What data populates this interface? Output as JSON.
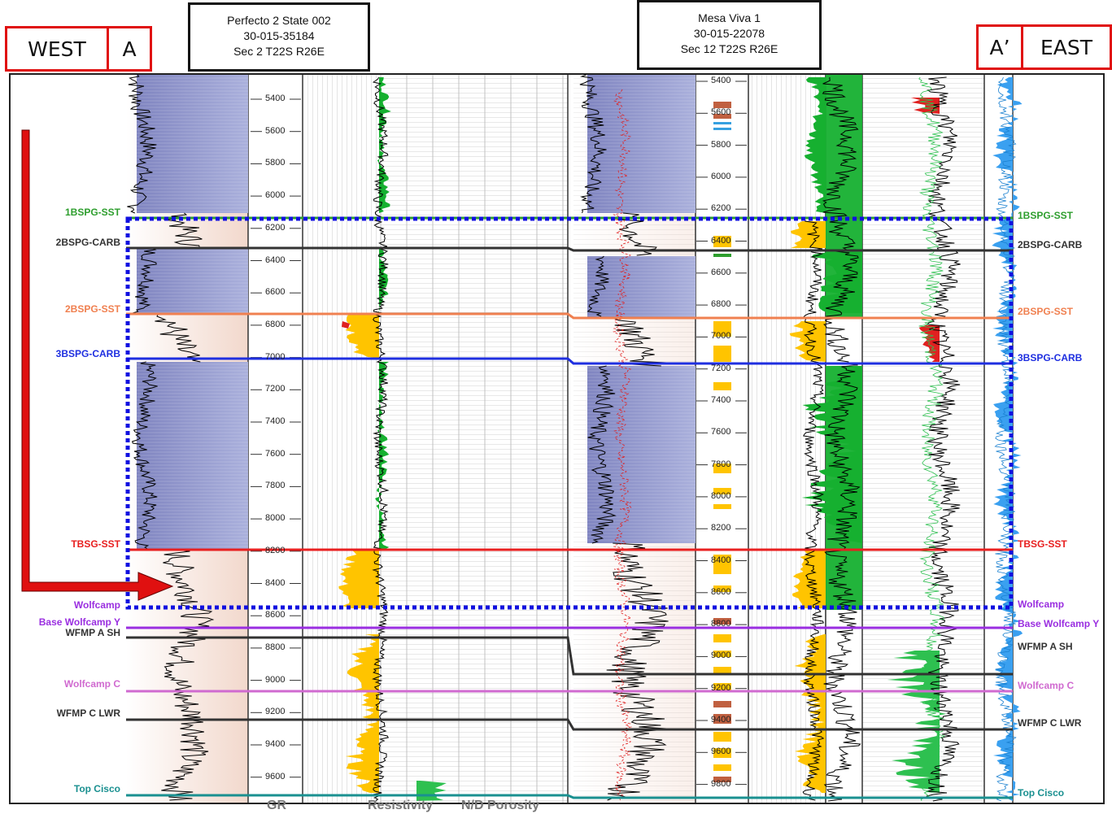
{
  "section": {
    "west_label": "WEST",
    "west_marker": "A",
    "east_marker": "A’",
    "east_label": "EAST"
  },
  "wells": [
    {
      "name": "Perfecto 2 State 002",
      "api": "30-015-35184",
      "location": "Sec 2 T22S R26E"
    },
    {
      "name": "Mesa Viva 1",
      "api": "30-015-22078",
      "location": "Sec 12 T22S R26E"
    }
  ],
  "well1_depths": [
    "5400",
    "5600",
    "5800",
    "6000",
    "6200",
    "6400",
    "6600",
    "6800",
    "7000",
    "7200",
    "7400",
    "7600",
    "7800",
    "8000",
    "8200",
    "8400",
    "8600",
    "8800",
    "9000",
    "9200",
    "9400",
    "9600"
  ],
  "well2_depths": [
    "5400",
    "5600",
    "5800",
    "6000",
    "6200",
    "6400",
    "6600",
    "6800",
    "7000",
    "7200",
    "7400",
    "7600",
    "7800",
    "8000",
    "8200",
    "8400",
    "8600",
    "8800",
    "9000",
    "9200",
    "9400",
    "9600",
    "9800"
  ],
  "tops": [
    {
      "name": "1BSPG-SST",
      "color": "#2e9e2e"
    },
    {
      "name": "2BSPG-CARB",
      "color": "#333333"
    },
    {
      "name": "2BSPG-SST",
      "color": "#f08050"
    },
    {
      "name": "3BSPG-CARB",
      "color": "#1f2fe0"
    },
    {
      "name": "TBSG-SST",
      "color": "#e82020"
    },
    {
      "name": "Wolfcamp",
      "color": "#9a2ee0"
    },
    {
      "name": "Base Wolfcamp Y",
      "color": "#9a2ee0"
    },
    {
      "name": "WFMP A SH",
      "color": "#333333"
    },
    {
      "name": "Wolfcamp C",
      "color": "#d06ad0"
    },
    {
      "name": "WFMP C LWR",
      "color": "#333333"
    },
    {
      "name": "Top Cisco",
      "color": "#1a9090"
    }
  ],
  "track_labels": {
    "gr": "GR",
    "resistivity": "Resistivity",
    "nd_porosity": "N/D Porosity"
  },
  "colors": {
    "shale": "#8a8fc8",
    "sand": "#ffc400",
    "resistivity_green": "#16b030",
    "porosity_blue": "#3aa0f0",
    "highlight_box": "#1010e0",
    "arrow": "#e01010"
  }
}
